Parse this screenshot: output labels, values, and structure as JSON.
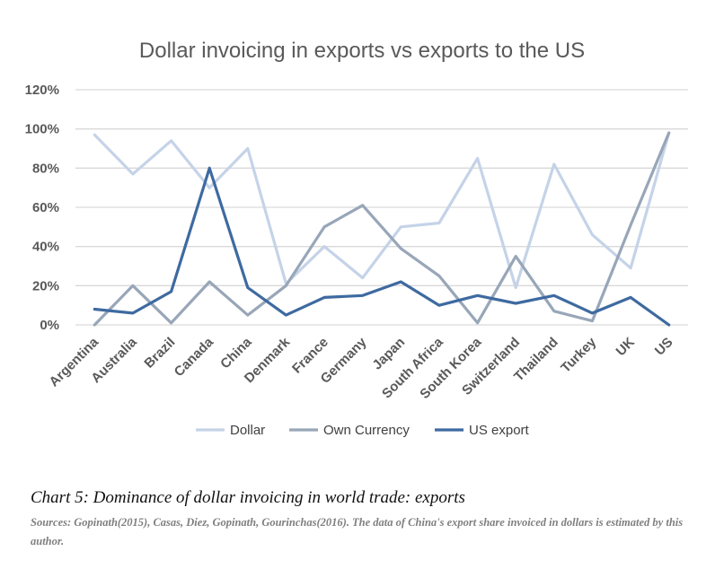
{
  "chart_data": {
    "type": "line",
    "title": "Dollar invoicing in exports vs exports to the US",
    "categories": [
      "Argentina",
      "Australia",
      "Brazil",
      "Canada",
      "China",
      "Denmark",
      "France",
      "Germany",
      "Japan",
      "South Africa",
      "South Korea",
      "Switzerland",
      "Thailand",
      "Turkey",
      "UK",
      "US"
    ],
    "y_ticks": [
      "0%",
      "20%",
      "40%",
      "60%",
      "80%",
      "100%",
      "120%"
    ],
    "ylim": [
      0,
      120
    ],
    "grid": true,
    "legend_position": "bottom",
    "series": [
      {
        "name": "Dollar",
        "color": "#c5d3e8",
        "values": [
          97,
          77,
          94,
          70,
          90,
          21,
          40,
          24,
          50,
          52,
          85,
          19,
          82,
          46,
          29,
          98
        ]
      },
      {
        "name": "Own Currency",
        "color": "#98a6b8",
        "values": [
          0,
          20,
          1,
          22,
          5,
          20,
          50,
          61,
          39,
          25,
          1,
          35,
          7,
          2,
          51,
          98
        ]
      },
      {
        "name": "US export",
        "color": "#3e6aa0",
        "values": [
          8,
          6,
          17,
          80,
          19,
          5,
          14,
          15,
          22,
          10,
          15,
          11,
          15,
          6,
          14,
          0
        ]
      }
    ]
  },
  "caption": "Chart 5: Dominance of dollar invoicing in world trade: exports",
  "source": "Sources: Gopinath(2015), Casas, Diez, Gopinath, Gourinchas(2016). The data of China's export share invoiced in dollars is estimated by this author."
}
